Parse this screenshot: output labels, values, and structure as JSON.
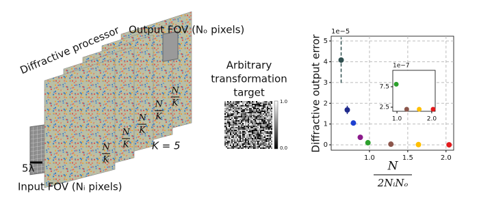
{
  "diagram": {
    "processor_label": "Diffractive processor",
    "output_label": "Output FOV (Nₒ pixels)",
    "input_label": "Input FOV (Nᵢ pixels)",
    "scale_label": "5λ",
    "layer_spacing": {
      "numerator": "N",
      "denominator": "K"
    },
    "layer_count_label": "K = 5",
    "target_title": [
      "Arbitrary",
      "transformation",
      "target"
    ],
    "colorbar_ticks": [
      "1.0",
      "0.0"
    ]
  },
  "chart_data": [
    {
      "type": "scatter",
      "ylabel": "Diffractive output error",
      "xlabel": {
        "numerator": "N",
        "denominator": "2NᵢNₒ"
      },
      "y_offset_label": "1e−5",
      "x": [
        0.63,
        0.71,
        0.79,
        0.88,
        0.98,
        1.28,
        1.64,
        2.04
      ],
      "values": [
        4.08,
        1.68,
        1.05,
        0.36,
        0.1,
        0.03,
        0.01,
        0
      ],
      "errors": [
        1.1,
        0.2,
        null,
        null,
        null,
        null,
        null,
        null
      ],
      "colors": [
        "#2f4f4f",
        "#1f2a8c",
        "#1e40d0",
        "#8b1a8b",
        "#2ca02c",
        "#8c564b",
        "#ffbf00",
        "#e31a1c"
      ],
      "xlim": [
        0.5,
        2.1
      ],
      "ylim": [
        -0.26,
        5.23
      ],
      "xticks": [
        {
          "value": 1,
          "label": "1.0"
        },
        1.5,
        {
          "value": 2,
          "label": "2.0"
        }
      ],
      "yticks": [
        0,
        1,
        2,
        3,
        4,
        5
      ],
      "grid": true
    },
    {
      "type": "scatter",
      "y_offset_label": "1e−7",
      "x": [
        0.98,
        1.28,
        1.64,
        2.04
      ],
      "values": [
        8.1,
        2.0,
        2.0,
        2.0
      ],
      "colors": [
        "#2ca02c",
        "#8c564b",
        "#ffbf00",
        "#e31a1c"
      ],
      "xlim": [
        0.88,
        2.1
      ],
      "ylim": [
        1.5,
        11.5
      ],
      "xticks": [
        {
          "value": 1,
          "label": "1.0"
        },
        {
          "value": 2,
          "label": "2.0"
        }
      ],
      "yticks": [
        2.5,
        7.5
      ],
      "grid": false
    }
  ]
}
